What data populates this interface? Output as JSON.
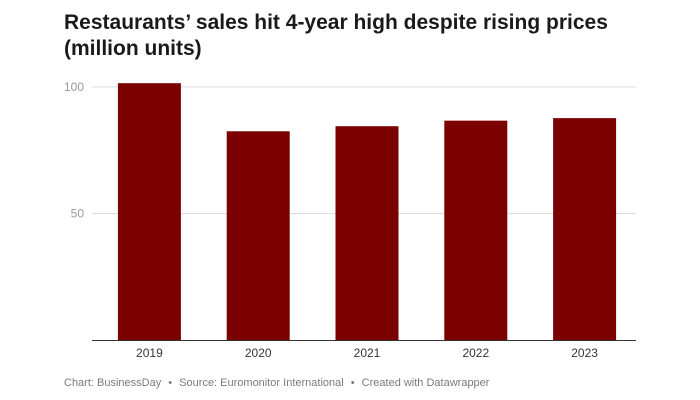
{
  "chart_data": {
    "type": "bar",
    "title_lines": [
      "Restaurants’ sales hit 4-year high despite rising prices",
      "(million units)"
    ],
    "categories": [
      "2019",
      "2020",
      "2021",
      "2022",
      "2023"
    ],
    "values": [
      101.5,
      82.5,
      84.5,
      86.7,
      87.7
    ],
    "yticks": [
      "100",
      "50"
    ],
    "ytick_values": [
      100,
      50
    ],
    "ylim": [
      0,
      100
    ],
    "xlabel": "",
    "ylabel": "",
    "grid": true,
    "bar_color": "#7b0000"
  },
  "footer": {
    "chart_credit": "Chart: BusinessDay",
    "source": "Source: Euromonitor International",
    "created_with": "Created with Datawrapper",
    "separator": "•"
  }
}
